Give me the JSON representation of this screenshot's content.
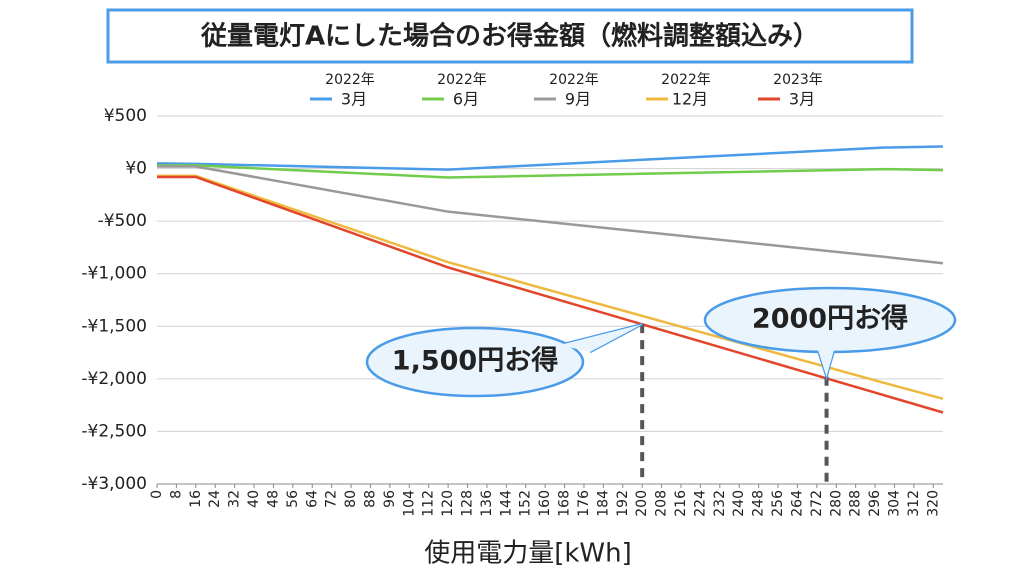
{
  "chart_data": {
    "type": "line",
    "title": "従量電灯Aにした場合のお得金額（燃料調整額込み）",
    "x_label": "使用電力量[kWh]",
    "x": [
      0,
      16,
      120,
      300,
      324
    ],
    "xlim": [
      0,
      324
    ],
    "xticks": [
      0,
      8,
      16,
      24,
      32,
      40,
      48,
      56,
      64,
      72,
      80,
      88,
      96,
      104,
      112,
      120,
      128,
      136,
      144,
      152,
      160,
      168,
      176,
      184,
      192,
      200,
      208,
      216,
      224,
      232,
      240,
      248,
      256,
      264,
      272,
      280,
      288,
      296,
      304,
      312,
      320
    ],
    "ylim": [
      -3000,
      500
    ],
    "yticks": [
      {
        "value": 500,
        "label": "¥500"
      },
      {
        "value": 0,
        "label": "¥0"
      },
      {
        "value": -500,
        "label": "-¥500"
      },
      {
        "value": -1000,
        "label": "-¥1,000"
      },
      {
        "value": -1500,
        "label": "-¥1,500"
      },
      {
        "value": -2000,
        "label": "-¥2,000"
      },
      {
        "value": -2500,
        "label": "-¥2,500"
      },
      {
        "value": -3000,
        "label": "-¥3,000"
      }
    ],
    "grid": true,
    "legend": "top",
    "series": [
      {
        "year": "2022年",
        "name": "3月",
        "color": "#4a9be8",
        "values": [
          50,
          45,
          -10,
          200,
          210
        ]
      },
      {
        "year": "2022年",
        "name": "6月",
        "color": "#72cc4c",
        "values": [
          30,
          30,
          -85,
          -5,
          -15
        ]
      },
      {
        "year": "2022年",
        "name": "9月",
        "color": "#999999",
        "values": [
          20,
          20,
          -410,
          -840,
          -900
        ]
      },
      {
        "year": "2022年",
        "name": "12月",
        "color": "#eeb93e",
        "values": [
          -70,
          -70,
          -890,
          -2040,
          -2190
        ]
      },
      {
        "year": "2023年",
        "name": "3月",
        "color": "#e2452a",
        "values": [
          -80,
          -80,
          -940,
          -2158,
          -2320
        ]
      }
    ],
    "annotations": [
      {
        "x": 200,
        "y": -1480,
        "label": "1,500円お得"
      },
      {
        "x": 276,
        "y": -1980,
        "label": "2000円お得"
      }
    ]
  }
}
